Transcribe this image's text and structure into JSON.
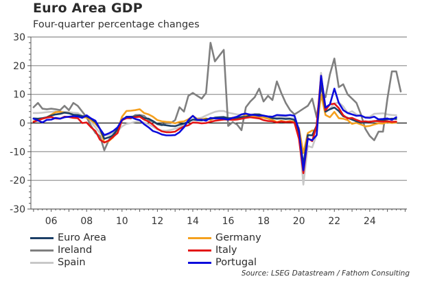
{
  "title": "Euro Area GDP",
  "subtitle": "Four-quarter percentage changes",
  "source": "Source: LSEG Datastream / Fathom Consulting",
  "chart_data": {
    "type": "line",
    "title": "Euro Area GDP",
    "subtitle": "Four-quarter percentage changes",
    "xlabel": "",
    "ylabel": "",
    "ylim": [
      -30,
      30
    ],
    "xlim": [
      2004.85,
      2026.1
    ],
    "yticks": [
      30,
      20,
      10,
      0,
      -10,
      -20,
      -30
    ],
    "ytick_labels": [
      "30",
      "20",
      "10",
      "0",
      "-10",
      "-20",
      "-30"
    ],
    "xticks": [
      2006,
      2008,
      2010,
      2012,
      2014,
      2016,
      2018,
      2020,
      2022,
      2024
    ],
    "xtick_labels": [
      "06",
      "08",
      "10",
      "12",
      "14",
      "16",
      "18",
      "20",
      "22",
      "24"
    ],
    "grid": "horizontal",
    "legend_position": "bottom",
    "x_start": 2005.0,
    "x_step": 0.25,
    "series": [
      {
        "name": "Euro Area",
        "color": "#1c3f66",
        "values": [
          1.6,
          1.5,
          1.7,
          2.0,
          2.6,
          3.0,
          3.2,
          3.6,
          3.4,
          2.9,
          2.8,
          2.4,
          2.3,
          1.5,
          0.3,
          -2.0,
          -5.5,
          -5.0,
          -4.3,
          -2.1,
          0.9,
          2.2,
          2.2,
          2.3,
          2.6,
          1.7,
          1.5,
          0.7,
          -0.3,
          -0.6,
          -0.8,
          -1.0,
          -1.1,
          -0.6,
          -0.2,
          0.4,
          1.2,
          1.0,
          0.9,
          1.3,
          1.5,
          1.9,
          2.0,
          2.1,
          1.7,
          1.7,
          1.8,
          2.1,
          2.1,
          2.7,
          3.0,
          3.0,
          2.5,
          2.2,
          1.7,
          1.5,
          1.6,
          1.4,
          1.5,
          1.1,
          -3.3,
          -14.5,
          -4.2,
          -4.3,
          -0.9,
          14.2,
          4.0,
          4.8,
          5.4,
          4.2,
          2.4,
          1.8,
          1.2,
          0.6,
          0.1,
          0.2,
          0.5,
          0.6,
          0.9,
          1.0,
          1.3,
          1.5,
          1.4
        ],
        "note": "approximate values read from chart"
      },
      {
        "name": "Germany",
        "color": "#f5a01e",
        "values": [
          0.6,
          0.9,
          1.5,
          2.0,
          2.9,
          3.8,
          3.9,
          3.6,
          3.5,
          2.8,
          2.5,
          2.0,
          1.9,
          1.0,
          -0.3,
          -2.0,
          -6.8,
          -6.3,
          -5.0,
          -2.4,
          2.2,
          4.2,
          4.3,
          4.5,
          4.8,
          3.5,
          3.0,
          2.2,
          1.0,
          0.6,
          0.4,
          0.3,
          -0.1,
          0.4,
          0.6,
          1.3,
          2.5,
          1.4,
          1.3,
          1.6,
          1.1,
          1.8,
          1.8,
          1.4,
          1.4,
          1.9,
          1.6,
          2.0,
          2.6,
          2.7,
          2.2,
          2.1,
          1.9,
          1.5,
          1.1,
          0.3,
          0.8,
          0.4,
          0.7,
          0.4,
          -1.8,
          -10.5,
          -3.5,
          -2.6,
          -2.6,
          10.0,
          2.8,
          2.0,
          3.9,
          1.7,
          1.5,
          1.0,
          -0.3,
          0.1,
          -0.5,
          -1.2,
          -1.0,
          -0.5,
          -0.1,
          -0.2,
          0.3,
          0.0,
          0.2
        ],
        "note": "approximate values read from chart"
      },
      {
        "name": "Ireland",
        "color": "#7f7f7f",
        "values": [
          5.5,
          7.0,
          5.0,
          4.8,
          5.0,
          4.8,
          4.5,
          6.0,
          4.5,
          7.0,
          6.0,
          4.0,
          2.0,
          -1.0,
          -3.5,
          -4.5,
          -9.5,
          -6.0,
          -4.0,
          -2.0,
          1.5,
          1.8,
          1.6,
          2.8,
          2.8,
          2.5,
          1.0,
          0.5,
          -0.4,
          -0.8,
          0.0,
          0.0,
          1.0,
          5.5,
          4.0,
          9.5,
          10.5,
          9.5,
          8.5,
          10.5,
          28.0,
          21.5,
          23.5,
          25.5,
          -1.0,
          0.3,
          -0.5,
          -2.5,
          5.5,
          7.5,
          9.0,
          12.0,
          7.5,
          9.5,
          8.0,
          14.5,
          10.5,
          7.0,
          4.5,
          3.0,
          4.0,
          5.0,
          6.0,
          8.5,
          2.0,
          12.0,
          9.0,
          17.0,
          22.5,
          12.5,
          13.5,
          10.0,
          8.5,
          7.0,
          3.0,
          -2.0,
          -4.5,
          -6.0,
          -3.0,
          -3.0,
          8.5,
          18.0,
          18.0,
          11.0
        ],
        "note": "approximate values read from chart"
      },
      {
        "name": "Italy",
        "color": "#e31515",
        "values": [
          0.4,
          0.9,
          1.5,
          1.9,
          2.1,
          1.6,
          1.5,
          2.2,
          2.1,
          1.8,
          1.7,
          0.0,
          0.2,
          -1.5,
          -2.8,
          -5.8,
          -6.8,
          -6.1,
          -4.8,
          -3.5,
          1.0,
          1.7,
          1.8,
          2.0,
          2.2,
          1.2,
          0.5,
          -0.6,
          -2.0,
          -2.9,
          -3.2,
          -3.2,
          -3.0,
          -2.0,
          -1.2,
          -0.8,
          0.2,
          0.1,
          -0.1,
          0.0,
          0.4,
          0.8,
          1.0,
          1.2,
          1.2,
          1.1,
          1.2,
          1.5,
          1.8,
          2.0,
          1.8,
          1.6,
          1.0,
          0.7,
          0.6,
          0.2,
          0.5,
          0.3,
          0.4,
          0.1,
          -5.5,
          -17.5,
          -5.3,
          -6.3,
          -0.8,
          16.5,
          4.5,
          6.5,
          6.8,
          5.2,
          2.7,
          1.6,
          1.8,
          1.1,
          0.5,
          0.6,
          0.4,
          0.7,
          0.6,
          0.5,
          0.6,
          0.4,
          0.5
        ],
        "note": "approximate values read from chart"
      },
      {
        "name": "Spain",
        "color": "#c8c8c8",
        "values": [
          3.5,
          3.5,
          3.6,
          3.8,
          3.9,
          4.0,
          4.0,
          3.9,
          3.8,
          3.6,
          3.5,
          2.6,
          2.0,
          0.3,
          -1.5,
          -3.5,
          -4.4,
          -4.1,
          -3.5,
          -2.8,
          -1.2,
          -0.3,
          0.0,
          0.4,
          0.6,
          0.2,
          -0.5,
          -1.3,
          -2.2,
          -2.6,
          -2.7,
          -2.4,
          -2.0,
          -1.5,
          -0.5,
          0.7,
          1.3,
          1.6,
          1.9,
          2.6,
          3.3,
          3.9,
          4.2,
          4.2,
          3.6,
          3.3,
          3.0,
          2.9,
          2.9,
          3.0,
          3.1,
          3.0,
          2.6,
          2.3,
          2.2,
          2.0,
          2.4,
          2.0,
          1.6,
          1.7,
          -4.0,
          -21.5,
          -8.0,
          -8.5,
          -4.0,
          17.5,
          3.8,
          5.0,
          6.8,
          7.2,
          5.8,
          3.5,
          4.1,
          3.0,
          2.5,
          2.0,
          2.2,
          3.2,
          3.3,
          3.4,
          3.0,
          2.8,
          2.7
        ],
        "note": "approximate values read from chart"
      },
      {
        "name": "Portugal",
        "color": "#0b0bdc",
        "values": [
          1.5,
          0.9,
          0.2,
          1.1,
          1.2,
          1.8,
          1.5,
          2.0,
          2.2,
          2.4,
          2.3,
          1.8,
          2.7,
          1.6,
          0.8,
          -2.0,
          -4.2,
          -3.6,
          -2.8,
          -1.5,
          1.1,
          2.0,
          2.1,
          1.4,
          1.0,
          -0.4,
          -1.5,
          -2.8,
          -3.3,
          -4.0,
          -4.3,
          -4.3,
          -4.2,
          -3.2,
          -1.5,
          1.0,
          2.5,
          1.1,
          1.2,
          0.8,
          1.8,
          1.6,
          1.6,
          1.5,
          1.2,
          1.8,
          2.2,
          3.0,
          3.3,
          2.9,
          2.8,
          2.5,
          2.6,
          2.3,
          2.2,
          2.8,
          2.7,
          2.6,
          2.8,
          2.5,
          -2.5,
          -16.5,
          -5.5,
          -6.0,
          -4.2,
          16.5,
          5.4,
          6.5,
          12.0,
          7.0,
          4.5,
          3.5,
          3.0,
          2.5,
          2.6,
          1.9,
          1.8,
          2.2,
          1.3,
          1.4,
          1.6,
          1.1,
          2.0
        ],
        "note": "approximate values read from chart"
      }
    ]
  }
}
